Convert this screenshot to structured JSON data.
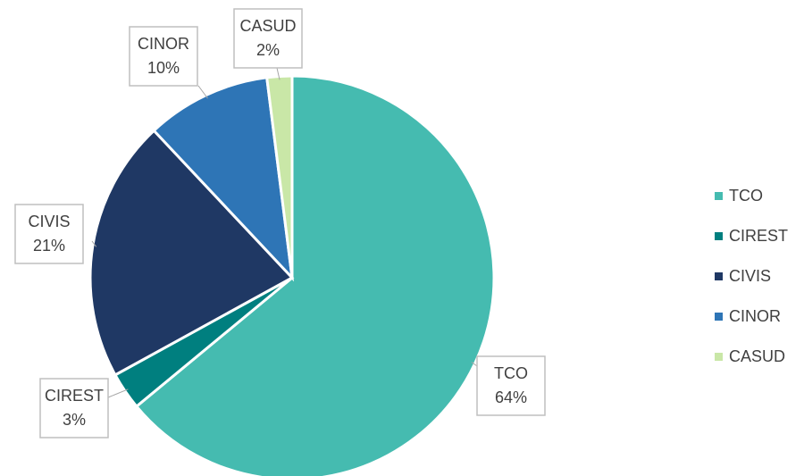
{
  "chart_data": {
    "type": "pie",
    "categories": [
      "TCO",
      "CIREST",
      "CIVIS",
      "CINOR",
      "CASUD"
    ],
    "values": [
      64,
      3,
      21,
      10,
      2
    ],
    "value_labels": [
      "64%",
      "3%",
      "21%",
      "10%",
      "2%"
    ],
    "colors": [
      "#45bbb0",
      "#007f7f",
      "#1f3864",
      "#2e75b6",
      "#c9e7a7"
    ],
    "legend": "right"
  }
}
